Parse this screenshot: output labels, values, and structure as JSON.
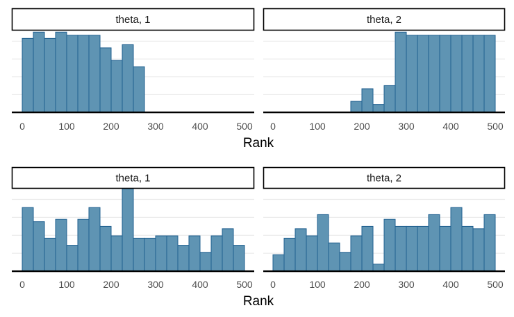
{
  "colors": {
    "bar_fill": "#5f94b3",
    "bar_stroke": "#1f5f8f",
    "grid": "#ebebeb",
    "axis": "#000000",
    "strip_border": "#000000"
  },
  "chart_data": [
    {
      "type": "bar",
      "histogram": true,
      "xlabel": "Rank",
      "xlim": [
        0,
        500
      ],
      "x_ticks": [
        0,
        100,
        200,
        300,
        400,
        500
      ],
      "panels": [
        {
          "strip": "theta, 1",
          "ylim": [
            0,
            52
          ],
          "bins": [
            {
              "x0": 0,
              "x1": 25,
              "y": 47
            },
            {
              "x0": 25,
              "x1": 50,
              "y": 51
            },
            {
              "x0": 50,
              "x1": 75,
              "y": 47
            },
            {
              "x0": 75,
              "x1": 100,
              "y": 51
            },
            {
              "x0": 100,
              "x1": 125,
              "y": 49
            },
            {
              "x0": 125,
              "x1": 150,
              "y": 49
            },
            {
              "x0": 150,
              "x1": 175,
              "y": 49
            },
            {
              "x0": 175,
              "x1": 200,
              "y": 41
            },
            {
              "x0": 200,
              "x1": 225,
              "y": 33
            },
            {
              "x0": 225,
              "x1": 250,
              "y": 43
            },
            {
              "x0": 250,
              "x1": 275,
              "y": 29
            }
          ]
        },
        {
          "strip": "theta, 2",
          "ylim": [
            0,
            52
          ],
          "bins": [
            {
              "x0": 175,
              "x1": 200,
              "y": 7
            },
            {
              "x0": 200,
              "x1": 225,
              "y": 15
            },
            {
              "x0": 225,
              "x1": 250,
              "y": 5
            },
            {
              "x0": 250,
              "x1": 275,
              "y": 17
            },
            {
              "x0": 275,
              "x1": 300,
              "y": 51
            },
            {
              "x0": 300,
              "x1": 325,
              "y": 49
            },
            {
              "x0": 325,
              "x1": 350,
              "y": 49
            },
            {
              "x0": 350,
              "x1": 375,
              "y": 49
            },
            {
              "x0": 375,
              "x1": 400,
              "y": 49
            },
            {
              "x0": 400,
              "x1": 425,
              "y": 49
            },
            {
              "x0": 425,
              "x1": 450,
              "y": 49
            },
            {
              "x0": 450,
              "x1": 475,
              "y": 49
            },
            {
              "x0": 475,
              "x1": 500,
              "y": 49
            }
          ]
        }
      ]
    },
    {
      "type": "bar",
      "histogram": true,
      "xlabel": "Rank",
      "xlim": [
        0,
        500
      ],
      "x_ticks": [
        0,
        100,
        200,
        300,
        400,
        500
      ],
      "panels": [
        {
          "strip": "theta, 1",
          "ylim": [
            0,
            35
          ],
          "bins": [
            {
              "x0": 0,
              "x1": 25,
              "y": 27
            },
            {
              "x0": 25,
              "x1": 50,
              "y": 21
            },
            {
              "x0": 50,
              "x1": 75,
              "y": 14
            },
            {
              "x0": 75,
              "x1": 100,
              "y": 22
            },
            {
              "x0": 100,
              "x1": 125,
              "y": 11
            },
            {
              "x0": 125,
              "x1": 150,
              "y": 22
            },
            {
              "x0": 150,
              "x1": 175,
              "y": 27
            },
            {
              "x0": 175,
              "x1": 200,
              "y": 19
            },
            {
              "x0": 200,
              "x1": 225,
              "y": 15
            },
            {
              "x0": 225,
              "x1": 250,
              "y": 35
            },
            {
              "x0": 250,
              "x1": 275,
              "y": 14
            },
            {
              "x0": 275,
              "x1": 300,
              "y": 14
            },
            {
              "x0": 300,
              "x1": 325,
              "y": 15
            },
            {
              "x0": 325,
              "x1": 350,
              "y": 15
            },
            {
              "x0": 350,
              "x1": 375,
              "y": 11
            },
            {
              "x0": 375,
              "x1": 400,
              "y": 15
            },
            {
              "x0": 400,
              "x1": 425,
              "y": 8
            },
            {
              "x0": 425,
              "x1": 450,
              "y": 15
            },
            {
              "x0": 450,
              "x1": 475,
              "y": 18
            },
            {
              "x0": 475,
              "x1": 500,
              "y": 11
            }
          ]
        },
        {
          "strip": "theta, 2",
          "ylim": [
            0,
            35
          ],
          "bins": [
            {
              "x0": 0,
              "x1": 25,
              "y": 7
            },
            {
              "x0": 25,
              "x1": 50,
              "y": 14
            },
            {
              "x0": 50,
              "x1": 75,
              "y": 18
            },
            {
              "x0": 75,
              "x1": 100,
              "y": 15
            },
            {
              "x0": 100,
              "x1": 125,
              "y": 24
            },
            {
              "x0": 125,
              "x1": 150,
              "y": 12
            },
            {
              "x0": 150,
              "x1": 175,
              "y": 8
            },
            {
              "x0": 175,
              "x1": 200,
              "y": 15
            },
            {
              "x0": 200,
              "x1": 225,
              "y": 19
            },
            {
              "x0": 225,
              "x1": 250,
              "y": 3
            },
            {
              "x0": 250,
              "x1": 275,
              "y": 22
            },
            {
              "x0": 275,
              "x1": 300,
              "y": 19
            },
            {
              "x0": 300,
              "x1": 325,
              "y": 19
            },
            {
              "x0": 325,
              "x1": 350,
              "y": 19
            },
            {
              "x0": 350,
              "x1": 375,
              "y": 24
            },
            {
              "x0": 375,
              "x1": 400,
              "y": 19
            },
            {
              "x0": 400,
              "x1": 425,
              "y": 27
            },
            {
              "x0": 425,
              "x1": 450,
              "y": 19
            },
            {
              "x0": 450,
              "x1": 475,
              "y": 18
            },
            {
              "x0": 475,
              "x1": 500,
              "y": 24
            }
          ]
        }
      ]
    }
  ]
}
